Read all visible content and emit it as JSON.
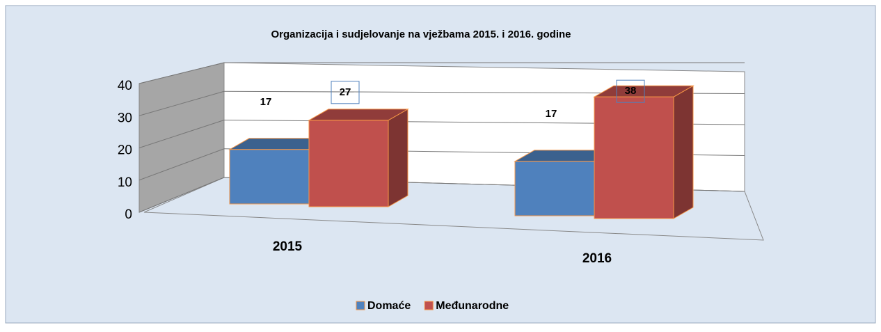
{
  "chart_data": {
    "type": "bar3d",
    "title": "Organizacija i sudjelovanje na vježbama 2015. i 2016. godine",
    "categories": [
      "2015",
      "2016"
    ],
    "series": [
      {
        "name": "Domaće",
        "color": "#4f81bd",
        "values": [
          17,
          17
        ]
      },
      {
        "name": "Međunarodne",
        "color": "#c0504d",
        "values": [
          27,
          38
        ]
      }
    ],
    "ylim": [
      0,
      40
    ],
    "yticks": [
      0,
      10,
      20,
      30,
      40
    ],
    "grid": true,
    "legend": "bottom"
  }
}
